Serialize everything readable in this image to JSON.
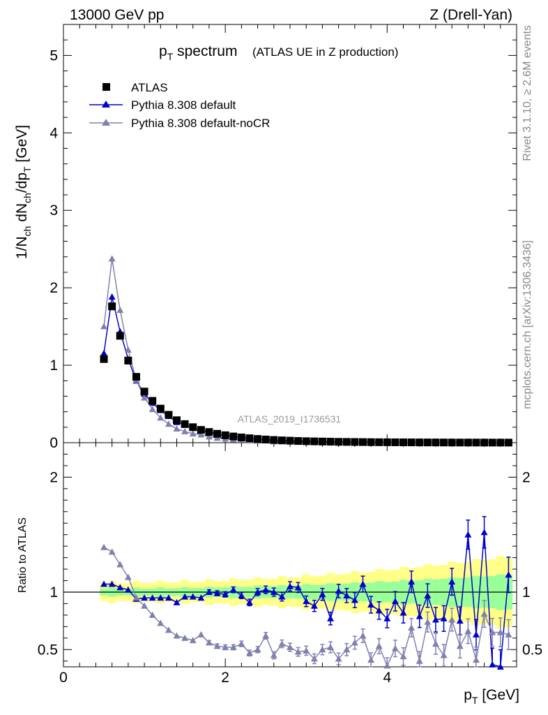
{
  "header": {
    "left": "13000 GeV pp",
    "right": "Z (Drell-Yan)"
  },
  "title": {
    "main": "p",
    "main_sub": "T",
    "main_rest": " spectrum",
    "paren": "(ATLAS UE in Z production)"
  },
  "side_text": {
    "rivet": "Rivet 3.1.10, ≥ 2.6M events",
    "mcplots": "mcplots.cern.ch [arXiv:1306.3436]"
  },
  "watermark": "ATLAS_2019_I1736531",
  "legend": [
    {
      "label": "ATLAS",
      "color": "#000000",
      "marker": "square"
    },
    {
      "label": "Pythia 8.308 default",
      "color": "#0000cc",
      "marker": "triangle"
    },
    {
      "label": "Pythia 8.308 default-noCR",
      "color": "#8080b0",
      "marker": "triangle"
    }
  ],
  "axes": {
    "ylabel_main": "1/N_ch dN_ch/dp_T [GeV]",
    "ylabel_ratio": "Ratio to ATLAS",
    "xlabel": "p_T [GeV]"
  },
  "chart_data": {
    "type": "line",
    "title": "pT spectrum (ATLAS UE in Z production)",
    "xlabel": "pT [GeV]",
    "ylabel": "1/Nch dNch/dpT [GeV]",
    "xlim": [
      0,
      5.6
    ],
    "ylim": [
      0,
      5.4
    ],
    "ratio_ylim": [
      0.35,
      2.3
    ],
    "xticks": [
      0,
      2,
      4
    ],
    "yticks": [
      0,
      1,
      2,
      3,
      4,
      5
    ],
    "ratio_yticks": [
      0.5,
      1,
      2
    ],
    "x": [
      0.5,
      0.6,
      0.7,
      0.8,
      0.9,
      1.0,
      1.1,
      1.2,
      1.3,
      1.4,
      1.5,
      1.6,
      1.7,
      1.8,
      1.9,
      2.0,
      2.1,
      2.2,
      2.3,
      2.4,
      2.5,
      2.6,
      2.7,
      2.8,
      2.9,
      3.0,
      3.1,
      3.2,
      3.3,
      3.4,
      3.5,
      3.6,
      3.7,
      3.8,
      3.9,
      4.0,
      4.1,
      4.2,
      4.3,
      4.4,
      4.5,
      4.6,
      4.7,
      4.8,
      4.9,
      5.0,
      5.1,
      5.2,
      5.3,
      5.4,
      5.5
    ],
    "series": [
      {
        "name": "ATLAS",
        "color": "#000000",
        "values": [
          1.08,
          1.76,
          1.38,
          1.06,
          0.85,
          0.66,
          0.54,
          0.44,
          0.36,
          0.29,
          0.24,
          0.2,
          0.165,
          0.138,
          0.115,
          0.096,
          0.08,
          0.068,
          0.057,
          0.048,
          0.041,
          0.035,
          0.03,
          0.026,
          0.022,
          0.019,
          0.017,
          0.015,
          0.013,
          0.011,
          0.01,
          0.009,
          0.008,
          0.007,
          0.006,
          0.0055,
          0.005,
          0.0045,
          0.004,
          0.0036,
          0.0032,
          0.0029,
          0.0026,
          0.0023,
          0.0021,
          0.0019,
          0.0017,
          0.0015,
          0.0014,
          0.0013,
          0.0012
        ]
      },
      {
        "name": "Pythia 8.308 default",
        "color": "#0000cc",
        "ratio": [
          1.07,
          1.07,
          1.04,
          1.02,
          0.94,
          0.95,
          0.95,
          0.95,
          0.95,
          0.91,
          0.96,
          0.96,
          0.95,
          1.0,
          0.99,
          0.98,
          1.02,
          0.97,
          0.91,
          1.0,
          1.02,
          1.0,
          0.96,
          1.05,
          1.04,
          0.92,
          0.88,
          0.98,
          0.77,
          1.01,
          0.97,
          0.93,
          1.07,
          0.89,
          0.84,
          0.77,
          0.92,
          0.82,
          1.09,
          0.79,
          0.97,
          0.76,
          0.77,
          1.09,
          0.75,
          1.5,
          0.63,
          1.52,
          0.37,
          0.35,
          1.15
        ]
      },
      {
        "name": "Pythia 8.308 default-noCR",
        "color": "#8080b0",
        "ratio": [
          1.39,
          1.35,
          1.24,
          1.13,
          0.95,
          0.88,
          0.8,
          0.73,
          0.67,
          0.62,
          0.6,
          0.58,
          0.63,
          0.56,
          0.53,
          0.52,
          0.52,
          0.55,
          0.47,
          0.5,
          0.62,
          0.45,
          0.55,
          0.52,
          0.48,
          0.49,
          0.42,
          0.5,
          0.52,
          0.42,
          0.5,
          0.56,
          0.62,
          0.41,
          0.53,
          0.36,
          0.51,
          0.44,
          0.69,
          0.4,
          0.74,
          0.55,
          0.45,
          0.76,
          0.53,
          0.66,
          0.41,
          0.81,
          0.65,
          0.65,
          0.63
        ]
      }
    ],
    "ratio_error_bands": {
      "inner_color": "#99ff99",
      "outer_color": "#ffff88"
    }
  }
}
